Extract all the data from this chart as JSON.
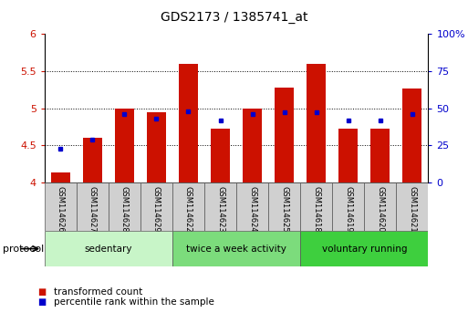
{
  "title": "GDS2173 / 1385741_at",
  "samples": [
    "GSM114626",
    "GSM114627",
    "GSM114628",
    "GSM114629",
    "GSM114622",
    "GSM114623",
    "GSM114624",
    "GSM114625",
    "GSM114618",
    "GSM114619",
    "GSM114620",
    "GSM114621"
  ],
  "red_values": [
    4.13,
    4.6,
    5.0,
    4.95,
    5.6,
    4.72,
    5.0,
    5.28,
    5.6,
    4.72,
    4.72,
    5.27
  ],
  "blue_pct": [
    23,
    29,
    46,
    43,
    48,
    42,
    46,
    47,
    47,
    42,
    42,
    46
  ],
  "groups": [
    {
      "label": "sedentary",
      "start": 0,
      "end": 3,
      "color": "#c8f5c8"
    },
    {
      "label": "twice a week activity",
      "start": 4,
      "end": 7,
      "color": "#7cdc7c"
    },
    {
      "label": "voluntary running",
      "start": 8,
      "end": 11,
      "color": "#3ecf3e"
    }
  ],
  "ylim": [
    4.0,
    6.0
  ],
  "yticks": [
    4.0,
    4.5,
    5.0,
    5.5,
    6.0
  ],
  "ytick_labels": [
    "4",
    "4.5",
    "5",
    "5.5",
    "6"
  ],
  "y2lim": [
    0,
    100
  ],
  "y2ticks": [
    0,
    25,
    50,
    75,
    100
  ],
  "y2ticklabels": [
    "0",
    "25",
    "50",
    "75",
    "100%"
  ],
  "grid_lines": [
    4.5,
    5.0,
    5.5
  ],
  "bar_color": "#cc1100",
  "blue_color": "#0000cc",
  "bar_width": 0.6,
  "bar_bottom": 4.0,
  "protocol_label": "protocol",
  "legend_items": [
    {
      "color": "#cc1100",
      "label": "transformed count"
    },
    {
      "color": "#0000cc",
      "label": "percentile rank within the sample"
    }
  ]
}
